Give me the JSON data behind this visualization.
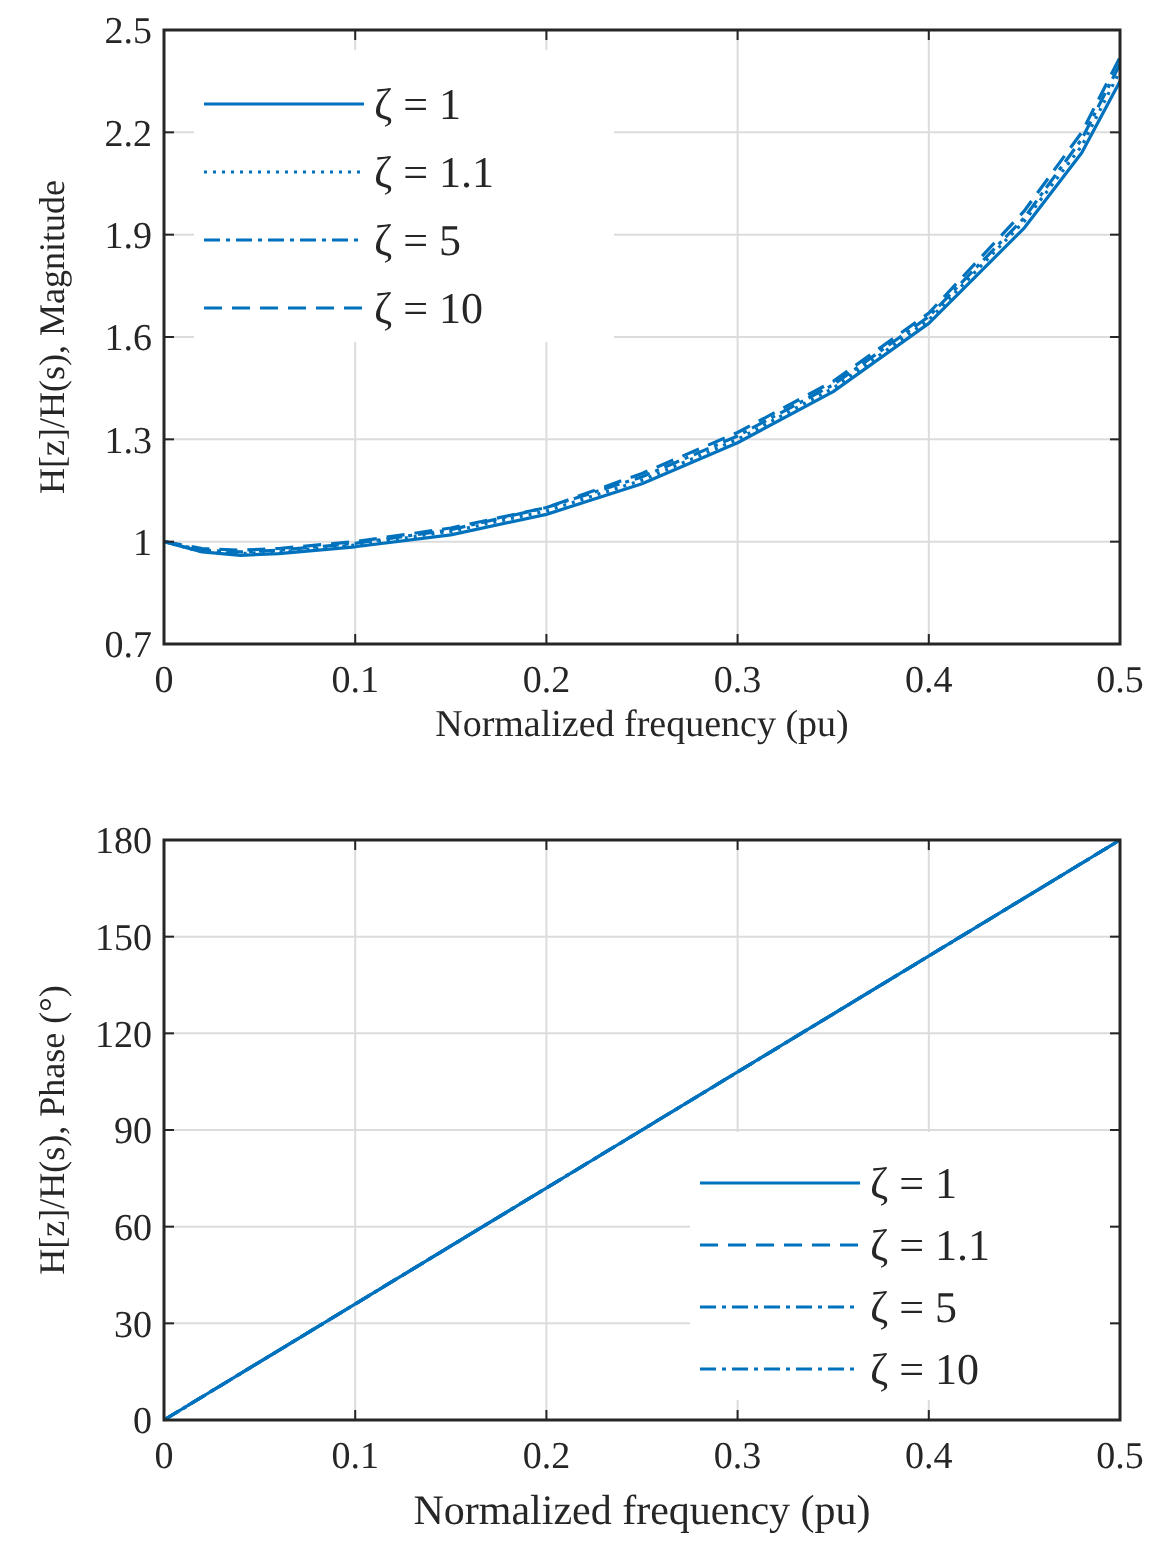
{
  "chart_data": [
    {
      "type": "line",
      "xlabel": "Normalized frequency (pu)",
      "ylabel": "H[z]/H(s), Magnitude",
      "xlim": [
        0,
        0.5
      ],
      "xticks": [
        0,
        0.1,
        0.2,
        0.3,
        0.4,
        0.5
      ],
      "ylim": [
        0.7,
        2.5
      ],
      "yticks": [
        0.7,
        1,
        1.3,
        1.6,
        1.9,
        2.2,
        2.5
      ],
      "grid": true,
      "legend": "top left",
      "series": [
        {
          "name": "ζ = 1",
          "color": "#0072bd",
          "line_style": "solid",
          "x": [
            0,
            0.02,
            0.04,
            0.06,
            0.1,
            0.15,
            0.2,
            0.25,
            0.3,
            0.35,
            0.4,
            0.45,
            0.48,
            0.5
          ],
          "values": [
            1,
            0.97,
            0.96,
            0.965,
            0.985,
            1.02,
            1.08,
            1.17,
            1.29,
            1.44,
            1.64,
            1.92,
            2.14,
            2.35
          ]
        },
        {
          "name": "ζ = 1.1",
          "color": "#0072bd",
          "line_style": "dotted",
          "x": [
            0,
            0.02,
            0.04,
            0.06,
            0.1,
            0.15,
            0.2,
            0.25,
            0.3,
            0.35,
            0.4,
            0.45,
            0.48,
            0.5
          ],
          "values": [
            1,
            0.97,
            0.965,
            0.97,
            0.99,
            1.03,
            1.09,
            1.18,
            1.3,
            1.45,
            1.65,
            1.94,
            2.16,
            2.38
          ]
        },
        {
          "name": "ζ = 5",
          "color": "#0072bd",
          "line_style": "dashdot",
          "x": [
            0,
            0.02,
            0.04,
            0.06,
            0.1,
            0.15,
            0.2,
            0.25,
            0.3,
            0.35,
            0.4,
            0.45,
            0.48,
            0.5
          ],
          "values": [
            1,
            0.975,
            0.97,
            0.975,
            0.995,
            1.035,
            1.1,
            1.19,
            1.31,
            1.46,
            1.66,
            1.95,
            2.18,
            2.4
          ]
        },
        {
          "name": "ζ = 10",
          "color": "#0072bd",
          "line_style": "dashed",
          "x": [
            0,
            0.02,
            0.04,
            0.06,
            0.1,
            0.15,
            0.2,
            0.25,
            0.3,
            0.35,
            0.4,
            0.45,
            0.48,
            0.5
          ],
          "values": [
            1,
            0.98,
            0.975,
            0.98,
            1,
            1.04,
            1.1,
            1.2,
            1.32,
            1.47,
            1.67,
            1.97,
            2.2,
            2.42
          ]
        }
      ]
    },
    {
      "type": "line",
      "xlabel": "Normalized frequency (pu)",
      "ylabel": "H[z]/H(s), Phase (°)",
      "xlim": [
        0,
        0.5
      ],
      "xticks": [
        0,
        0.1,
        0.2,
        0.3,
        0.4,
        0.5
      ],
      "ylim": [
        0,
        180
      ],
      "yticks": [
        0,
        30,
        60,
        90,
        120,
        150,
        180
      ],
      "grid": true,
      "legend": "bottom right",
      "series": [
        {
          "name": "ζ = 1",
          "color": "#0072bd",
          "line_style": "solid",
          "x": [
            0,
            0.25,
            0.5
          ],
          "values": [
            0,
            90,
            180
          ]
        },
        {
          "name": "ζ = 1.1",
          "color": "#0072bd",
          "line_style": "dashed",
          "x": [
            0,
            0.25,
            0.5
          ],
          "values": [
            0,
            90,
            180
          ]
        },
        {
          "name": "ζ = 5",
          "color": "#0072bd",
          "line_style": "dashdot",
          "x": [
            0,
            0.25,
            0.5
          ],
          "values": [
            0,
            90,
            180
          ]
        },
        {
          "name": "ζ = 10",
          "color": "#0072bd",
          "line_style": "dashdot",
          "x": [
            0,
            0.25,
            0.5
          ],
          "values": [
            0,
            90,
            180
          ]
        }
      ]
    }
  ]
}
